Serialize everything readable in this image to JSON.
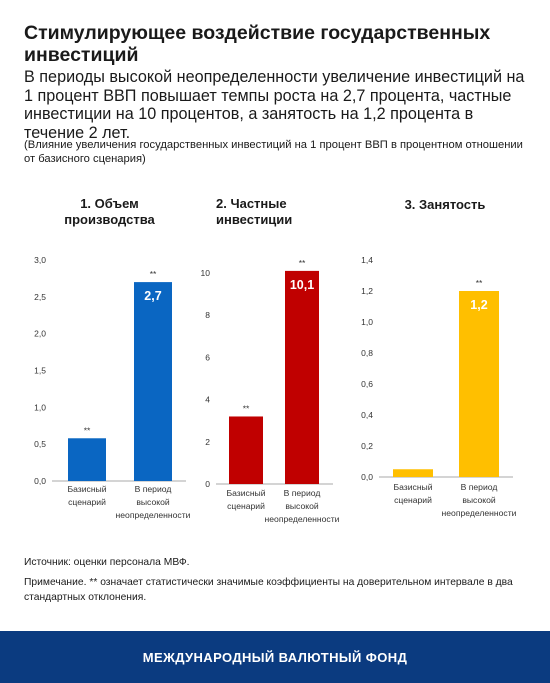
{
  "header": {
    "title": "Стимулирующее воздействие государственных инвестиций",
    "subtitle": "В периоды высокой неопределенности увеличение инвестиций на 1 процент ВВП повышает темпы роста на 2,7 процента, частные инвестиции на 10 процентов, а занятость на 1,2 процента в течение 2 лет.",
    "note": "(Влияние увеличения государственных инвестиций на 1 процент ВВП в процентном отношении от базисного сценария)"
  },
  "colors": {
    "chart1": "#0a66c2",
    "chart2": "#c00000",
    "chart3": "#ffbf00",
    "footer_bg": "#0b3b80"
  },
  "chart_data": [
    {
      "type": "bar",
      "title": "1. Объем производства",
      "categories": [
        "Базисный сценарий",
        "В период высокой неопределенности"
      ],
      "values": [
        0.58,
        2.7
      ],
      "value_labels": [
        "",
        "2,7"
      ],
      "significance": [
        "**",
        "**"
      ],
      "ylim": [
        0,
        3.0
      ],
      "yticks": [
        "0,0",
        "0,5",
        "1,0",
        "1,5",
        "2,0",
        "2,5",
        "3,0"
      ],
      "xlabel": "",
      "ylabel": ""
    },
    {
      "type": "bar",
      "title": "2. Частные инвестиции",
      "categories": [
        "Базисный сценарий",
        "В период высокой неопределенности"
      ],
      "values": [
        3.2,
        10.1
      ],
      "value_labels": [
        "",
        "10,1"
      ],
      "significance": [
        "**",
        "**"
      ],
      "ylim": [
        0,
        10
      ],
      "yticks": [
        "0",
        "2",
        "4",
        "6",
        "8",
        "10"
      ],
      "xlabel": "",
      "ylabel": ""
    },
    {
      "type": "bar",
      "title": "3. Занятость",
      "categories": [
        "Базисный сценарий",
        "В период высокой неопределенности"
      ],
      "values": [
        0.05,
        1.2
      ],
      "value_labels": [
        "",
        "1,2"
      ],
      "significance": [
        "",
        "**"
      ],
      "ylim": [
        0,
        1.4
      ],
      "yticks": [
        "0,0",
        "0,2",
        "0,4",
        "0,6",
        "0,8",
        "1,0",
        "1,2",
        "1,4"
      ],
      "xlabel": "",
      "ylabel": ""
    }
  ],
  "footer": {
    "source": "Источник: оценки персонала МВФ.",
    "note": "Примечание. ** означает статистически значимые коэффициенты на доверительном интервале в два стандартных отклонения.",
    "organization": "МЕЖДУНАРОДНЫЙ ВАЛЮТНЫЙ ФОНД"
  }
}
